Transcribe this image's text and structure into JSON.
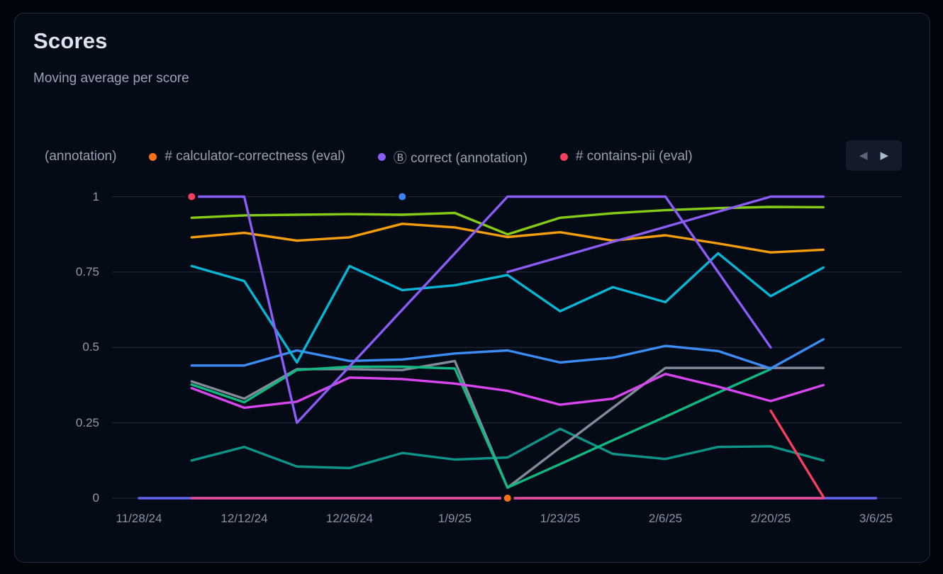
{
  "card": {
    "title": "Scores",
    "subtitle": "Moving average per score"
  },
  "legend": {
    "items": [
      {
        "label": "(annotation)",
        "dot_color": null
      },
      {
        "label": "# calculator-correctness (eval)",
        "dot_color": "#f97316"
      },
      {
        "label": "Ⓑ correct (annotation)",
        "dot_color": "#8b5cf6"
      },
      {
        "label": "# contains-pii (eval)",
        "dot_color": "#f43f5e"
      }
    ],
    "nav": {
      "prev_icon": "◀",
      "next_icon": "▶"
    }
  },
  "chart_data": {
    "type": "line",
    "title": "Scores",
    "subtitle": "Moving average per score",
    "xlabel": "",
    "ylabel": "",
    "ylim": [
      0,
      1
    ],
    "grid": "horizontal",
    "y_ticks": [
      "1",
      "0.75",
      "0.5",
      "0.25",
      "0"
    ],
    "y_tick_values": [
      1,
      0.75,
      0.5,
      0.25,
      0
    ],
    "x_ticks": [
      "11/28/24",
      "12/12/24",
      "12/26/24",
      "1/9/25",
      "1/23/25",
      "2/6/25",
      "2/20/25",
      "3/6/25"
    ],
    "x_unit": "weeks since 11/28/24, one point per week",
    "series": [
      {
        "name": "indigo-line",
        "color": "#6366f1",
        "points": [
          [
            0,
            0
          ],
          [
            14,
            0
          ]
        ]
      },
      {
        "name": "pink-line",
        "color": "#ec4899",
        "points": [
          [
            1,
            0
          ],
          [
            13,
            0
          ]
        ]
      },
      {
        "name": "teal-line",
        "color": "#0d9488",
        "points": [
          [
            1,
            0.125
          ],
          [
            2,
            0.17
          ],
          [
            3,
            0.105
          ],
          [
            4,
            0.1
          ],
          [
            5,
            0.15
          ],
          [
            6,
            0.128
          ],
          [
            7,
            0.135
          ],
          [
            8,
            0.23
          ],
          [
            9,
            0.147
          ],
          [
            10,
            0.13
          ],
          [
            11,
            0.17
          ],
          [
            12,
            0.172
          ],
          [
            13,
            0.125
          ]
        ]
      },
      {
        "name": "gray-line",
        "color": "#828a99",
        "points": [
          [
            1,
            0.387
          ],
          [
            2,
            0.33
          ],
          [
            3,
            0.428
          ],
          [
            4,
            0.428
          ],
          [
            5,
            0.425
          ],
          [
            6,
            0.455
          ],
          [
            7,
            0.035
          ],
          [
            8,
            0.168
          ],
          [
            9,
            0.3
          ],
          [
            10,
            0.432
          ],
          [
            11,
            0.432
          ],
          [
            12,
            0.432
          ],
          [
            13,
            0.432
          ]
        ]
      },
      {
        "name": "emerald-line",
        "color": "#10b981",
        "points": [
          [
            1,
            0.377
          ],
          [
            2,
            0.318
          ],
          [
            3,
            0.425
          ],
          [
            4,
            0.436
          ],
          [
            5,
            0.436
          ],
          [
            6,
            0.43
          ],
          [
            7,
            0.035
          ],
          [
            8,
            0.113
          ],
          [
            9,
            0.192
          ],
          [
            10,
            0.27
          ],
          [
            11,
            0.35
          ],
          [
            12,
            0.428
          ]
        ]
      },
      {
        "name": "fuchsia-line",
        "color": "#d946ef",
        "points": [
          [
            1,
            0.365
          ],
          [
            2,
            0.3
          ],
          [
            3,
            0.32
          ],
          [
            4,
            0.4
          ],
          [
            5,
            0.395
          ],
          [
            6,
            0.38
          ],
          [
            7,
            0.356
          ],
          [
            8,
            0.31
          ],
          [
            9,
            0.33
          ],
          [
            10,
            0.412
          ],
          [
            11,
            0.37
          ],
          [
            12,
            0.322
          ],
          [
            13,
            0.375
          ]
        ]
      },
      {
        "name": "blue-line",
        "color": "#3b8df5",
        "points": [
          [
            1,
            0.44
          ],
          [
            2,
            0.44
          ],
          [
            3,
            0.49
          ],
          [
            4,
            0.455
          ],
          [
            5,
            0.46
          ],
          [
            6,
            0.48
          ],
          [
            7,
            0.49
          ],
          [
            8,
            0.45
          ],
          [
            9,
            0.466
          ],
          [
            10,
            0.505
          ],
          [
            11,
            0.488
          ],
          [
            12,
            0.43
          ],
          [
            13,
            0.527
          ]
        ]
      },
      {
        "name": "cyan-line",
        "color": "#06b6d4",
        "points": [
          [
            1,
            0.77
          ],
          [
            2,
            0.72
          ],
          [
            3,
            0.45
          ],
          [
            4,
            0.77
          ],
          [
            5,
            0.69
          ],
          [
            6,
            0.706
          ],
          [
            7,
            0.74
          ],
          [
            8,
            0.62
          ],
          [
            9,
            0.7
          ],
          [
            10,
            0.65
          ],
          [
            11,
            0.812
          ],
          [
            12,
            0.67
          ],
          [
            13,
            0.765
          ]
        ]
      },
      {
        "name": "amber-line",
        "color": "#f59e0b",
        "points": [
          [
            1,
            0.865
          ],
          [
            2,
            0.88
          ],
          [
            3,
            0.854
          ],
          [
            4,
            0.865
          ],
          [
            5,
            0.91
          ],
          [
            6,
            0.898
          ],
          [
            7,
            0.866
          ],
          [
            8,
            0.882
          ],
          [
            9,
            0.854
          ],
          [
            10,
            0.872
          ],
          [
            11,
            0.845
          ],
          [
            12,
            0.815
          ],
          [
            13,
            0.824
          ]
        ]
      },
      {
        "name": "lime-line",
        "color": "#84cc16",
        "points": [
          [
            1,
            0.93
          ],
          [
            2,
            0.938
          ],
          [
            3,
            0.94
          ],
          [
            4,
            0.942
          ],
          [
            5,
            0.94
          ],
          [
            6,
            0.946
          ],
          [
            7,
            0.875
          ],
          [
            8,
            0.93
          ],
          [
            9,
            0.945
          ],
          [
            10,
            0.955
          ],
          [
            11,
            0.962
          ],
          [
            12,
            0.966
          ],
          [
            13,
            0.965
          ]
        ]
      },
      {
        "name": "violet-line-a",
        "color": "#8b5cf6",
        "points": [
          [
            1,
            1
          ],
          [
            2,
            1
          ],
          [
            3,
            0.25
          ],
          [
            4,
            0.437
          ],
          [
            5,
            0.625
          ],
          [
            6,
            0.812
          ],
          [
            7,
            1
          ],
          [
            8,
            1
          ],
          [
            9,
            1
          ],
          [
            10,
            1
          ],
          [
            11,
            0.75
          ],
          [
            12,
            0.5
          ]
        ]
      },
      {
        "name": "violet-line-b",
        "color": "#8b5cf6",
        "points": [
          [
            7,
            0.75
          ],
          [
            8,
            0.8
          ],
          [
            9,
            0.85
          ],
          [
            10,
            0.9
          ],
          [
            11,
            0.95
          ],
          [
            12,
            1
          ],
          [
            13,
            1
          ]
        ]
      },
      {
        "name": "red-line",
        "color": "#f43f5e",
        "points": [
          [
            12,
            0.29
          ],
          [
            13,
            0.004
          ]
        ]
      }
    ],
    "markers": [
      {
        "name": "red-point-marker",
        "color": "#f43f5e",
        "w": 1,
        "v": 1
      },
      {
        "name": "blue-point-marker",
        "color": "#3b82f6",
        "w": 5,
        "v": 1
      },
      {
        "name": "orange-point-marker",
        "color": "#f97316",
        "w": 7,
        "v": 0
      }
    ]
  },
  "colors": {
    "page_bg": "#01040b",
    "card_bg": "#040a16",
    "card_border": "#222b3e",
    "gridline": "#252c3c",
    "axis_text": "#8e97a6",
    "title_text": "#dbe3f1",
    "subtitle_text": "#9aa3b4",
    "legend_text": "#98a1ae",
    "nav_bg": "#141a29"
  }
}
